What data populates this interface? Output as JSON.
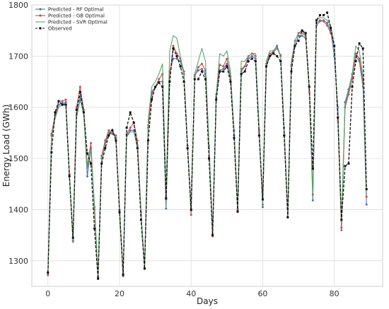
{
  "chart_data": {
    "type": "line",
    "xlabel": "Days",
    "ylabel": "Energy Load (GWh)",
    "xlim": [
      -4.5,
      93.5
    ],
    "ylim": [
      1250,
      1800
    ],
    "xticks": [
      0,
      20,
      40,
      60,
      80
    ],
    "yticks": [
      1300,
      1400,
      1500,
      1600,
      1700,
      1800
    ],
    "grid": true,
    "legend_position": "top-left",
    "x": [
      0,
      1,
      2,
      3,
      4,
      5,
      6,
      7,
      8,
      9,
      10,
      11,
      12,
      13,
      14,
      15,
      16,
      17,
      18,
      19,
      20,
      21,
      22,
      23,
      24,
      25,
      26,
      27,
      28,
      29,
      30,
      31,
      32,
      33,
      34,
      35,
      36,
      37,
      38,
      39,
      40,
      41,
      42,
      43,
      44,
      45,
      46,
      47,
      48,
      49,
      50,
      51,
      52,
      53,
      54,
      55,
      56,
      57,
      58,
      59,
      60,
      61,
      62,
      63,
      64,
      65,
      66,
      67,
      68,
      69,
      70,
      71,
      72,
      73,
      74,
      75,
      76,
      77,
      78,
      79,
      80,
      81,
      82,
      83,
      84,
      85,
      86,
      87,
      88,
      89
    ],
    "series": [
      {
        "name": "Predicted - RF Optimal",
        "color": "#4c72b0",
        "dash": "solid",
        "marker": "circle",
        "values": [
          1275,
          1545,
          1583,
          1605,
          1608,
          1610,
          1470,
          1340,
          1585,
          1620,
          1590,
          1465,
          1520,
          1405,
          1268,
          1500,
          1530,
          1550,
          1550,
          1540,
          1400,
          1270,
          1545,
          1555,
          1555,
          1525,
          1390,
          1285,
          1560,
          1630,
          1640,
          1650,
          1650,
          1402,
          1670,
          1695,
          1695,
          1690,
          1665,
          1525,
          1398,
          1663,
          1672,
          1675,
          1665,
          1525,
          1352,
          1620,
          1672,
          1675,
          1685,
          1655,
          1555,
          1400,
          1670,
          1680,
          1695,
          1700,
          1695,
          1555,
          1405,
          1680,
          1700,
          1710,
          1720,
          1700,
          1560,
          1385,
          1680,
          1720,
          1740,
          1740,
          1735,
          1640,
          1418,
          1760,
          1768,
          1770,
          1765,
          1750,
          1700,
          1600,
          1365,
          1610,
          1635,
          1665,
          1700,
          1690,
          1640,
          1410
        ]
      },
      {
        "name": "Predicted - GB Optimal",
        "color": "#c44e52",
        "dash": "solid",
        "marker": "circle",
        "values": [
          1272,
          1548,
          1585,
          1612,
          1612,
          1615,
          1468,
          1338,
          1600,
          1640,
          1595,
          1485,
          1530,
          1400,
          1266,
          1505,
          1535,
          1555,
          1548,
          1545,
          1395,
          1272,
          1548,
          1560,
          1570,
          1535,
          1395,
          1284,
          1565,
          1625,
          1640,
          1655,
          1665,
          1420,
          1660,
          1720,
          1705,
          1695,
          1670,
          1520,
          1390,
          1660,
          1678,
          1685,
          1672,
          1520,
          1348,
          1625,
          1683,
          1680,
          1695,
          1660,
          1545,
          1400,
          1675,
          1680,
          1700,
          1705,
          1700,
          1555,
          1410,
          1685,
          1705,
          1708,
          1715,
          1702,
          1545,
          1385,
          1683,
          1730,
          1745,
          1750,
          1738,
          1630,
          1430,
          1765,
          1770,
          1768,
          1760,
          1745,
          1720,
          1575,
          1360,
          1600,
          1625,
          1655,
          1705,
          1695,
          1650,
          1425
        ]
      },
      {
        "name": "Predicted - SVR Optimal",
        "color": "#55a868",
        "dash": "solid",
        "marker": "none",
        "values": [
          1275,
          1540,
          1578,
          1600,
          1605,
          1608,
          1472,
          1335,
          1580,
          1615,
          1585,
          1480,
          1515,
          1410,
          1270,
          1498,
          1528,
          1548,
          1558,
          1538,
          1405,
          1275,
          1542,
          1552,
          1552,
          1522,
          1392,
          1290,
          1575,
          1640,
          1650,
          1665,
          1685,
          1430,
          1710,
          1740,
          1735,
          1700,
          1665,
          1525,
          1400,
          1665,
          1690,
          1715,
          1690,
          1530,
          1355,
          1625,
          1705,
          1700,
          1710,
          1670,
          1550,
          1405,
          1690,
          1690,
          1700,
          1705,
          1705,
          1560,
          1410,
          1690,
          1710,
          1710,
          1715,
          1700,
          1555,
          1390,
          1690,
          1730,
          1745,
          1745,
          1740,
          1640,
          1430,
          1770,
          1775,
          1775,
          1770,
          1760,
          1720,
          1580,
          1375,
          1605,
          1630,
          1665,
          1720,
          1710,
          1660,
          1430
        ]
      },
      {
        "name": "Observed",
        "color": "#111111",
        "dash": "dashed",
        "marker": "square",
        "values": [
          1277,
          1512,
          1590,
          1612,
          1605,
          1605,
          1465,
          1345,
          1595,
          1630,
          1590,
          1510,
          1490,
          1363,
          1265,
          1490,
          1520,
          1545,
          1555,
          1535,
          1395,
          1273,
          1560,
          1590,
          1570,
          1520,
          1380,
          1285,
          1535,
          1615,
          1640,
          1648,
          1640,
          1422,
          1650,
          1715,
          1700,
          1680,
          1650,
          1520,
          1400,
          1655,
          1655,
          1670,
          1655,
          1500,
          1350,
          1615,
          1670,
          1670,
          1680,
          1650,
          1540,
          1396,
          1665,
          1670,
          1690,
          1695,
          1690,
          1545,
          1420,
          1680,
          1700,
          1705,
          1700,
          1690,
          1545,
          1385,
          1670,
          1720,
          1730,
          1750,
          1745,
          1640,
          1480,
          1770,
          1780,
          1780,
          1785,
          1755,
          1720,
          1580,
          1380,
          1485,
          1490,
          1640,
          1690,
          1725,
          1715,
          1440
        ]
      }
    ]
  }
}
